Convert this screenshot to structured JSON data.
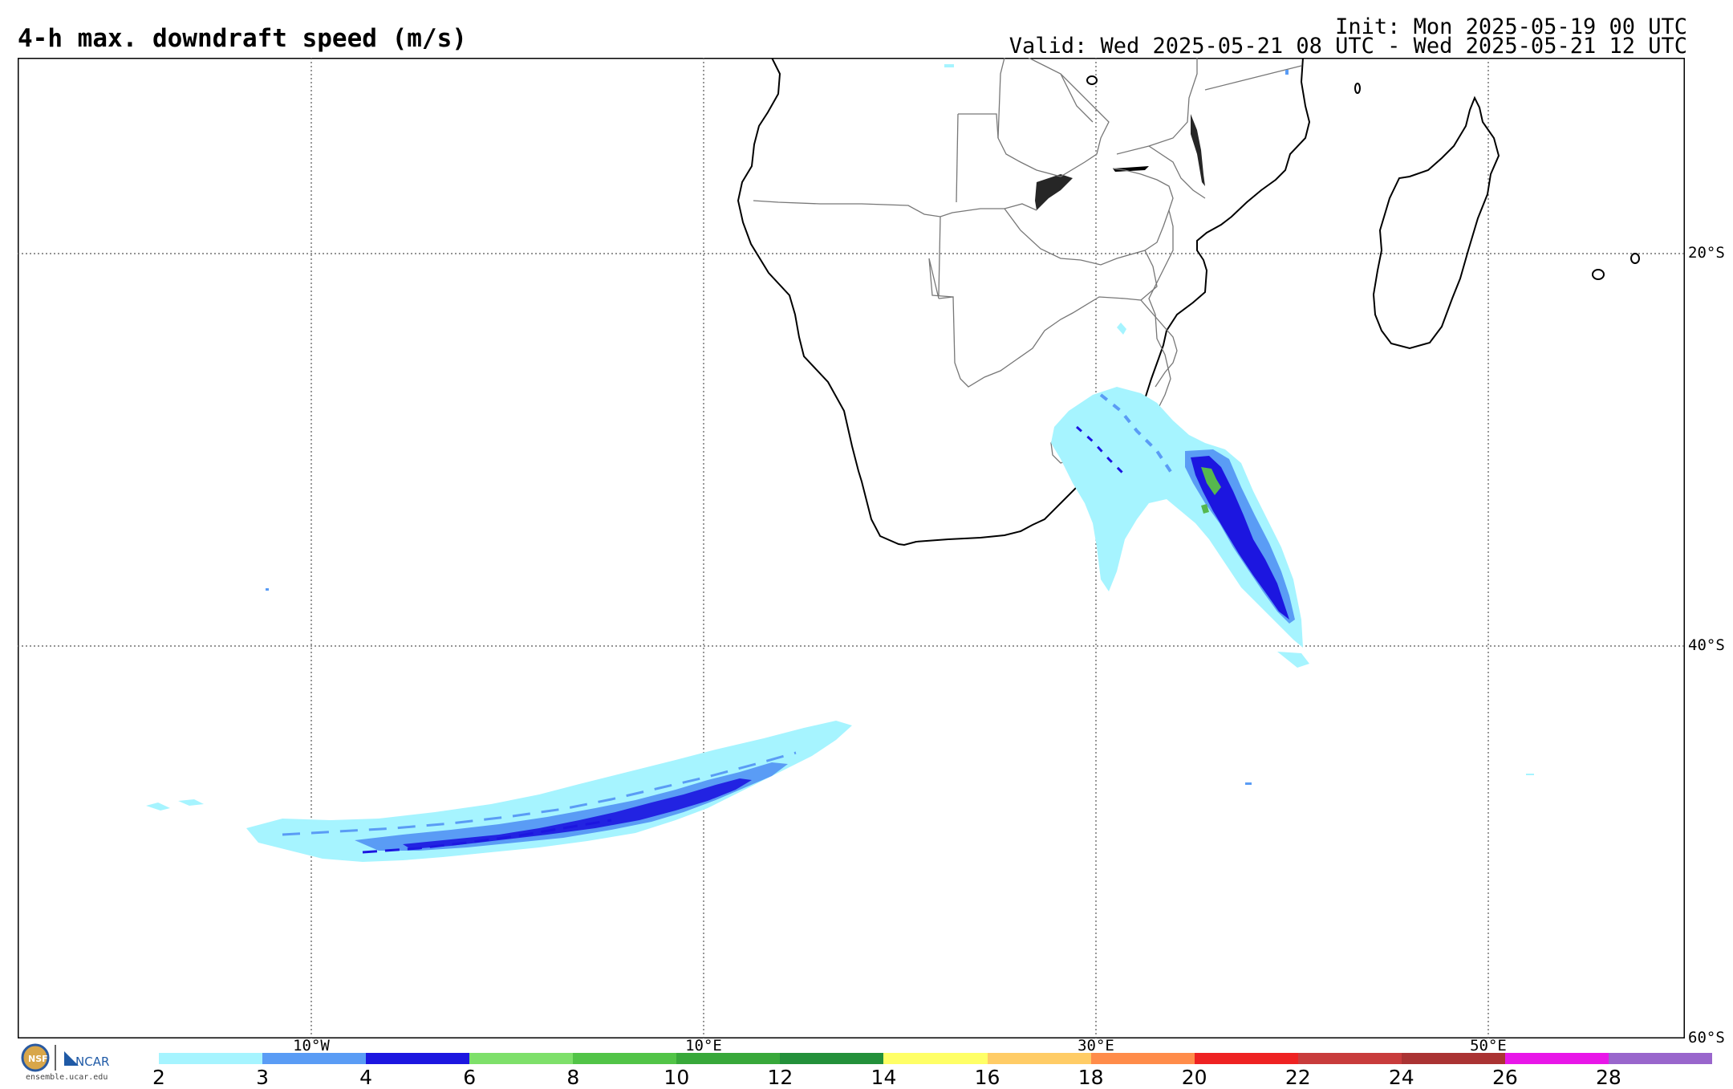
{
  "header": {
    "title": "4-h max. downdraft speed (m/s)",
    "init": "Init: Mon 2025-05-19 00 UTC",
    "valid": "Valid: Wed 2025-05-21 08 UTC - Wed 2025-05-21 12 UTC"
  },
  "map": {
    "lat_labels": [
      "20°S",
      "40°S",
      "60°S"
    ],
    "lon_labels": [
      "10°W",
      "10°E",
      "30°E",
      "50°E"
    ],
    "grid": "dotted",
    "region": "Southern Africa and South Atlantic / Indian Ocean",
    "features": [
      "Southern Africa coastline",
      "country borders",
      "Madagascar"
    ],
    "colors": {
      "light_cyan": "#a6f4ff",
      "light_blue": "#5a9cf5",
      "blue": "#1c16e0",
      "green": "#56b84e",
      "coast": "#000000",
      "border": "#777777"
    }
  },
  "colorbar": {
    "ticks": [
      "2",
      "3",
      "4",
      "6",
      "8",
      "10",
      "12",
      "14",
      "16",
      "18",
      "20",
      "22",
      "24",
      "26",
      "28"
    ],
    "colors": [
      "#a6f4ff",
      "#5a9cf5",
      "#1c16e0",
      "#7ee06a",
      "#52c447",
      "#38a83a",
      "#23903a",
      "#ffff66",
      "#ffcc66",
      "#ff8c4a",
      "#ee2222",
      "#c83c3c",
      "#aa3333",
      "#e816e8",
      "#9966cc"
    ]
  },
  "branding": {
    "logo_text": "NCAR",
    "credit": "ensemble.ucar.edu"
  }
}
